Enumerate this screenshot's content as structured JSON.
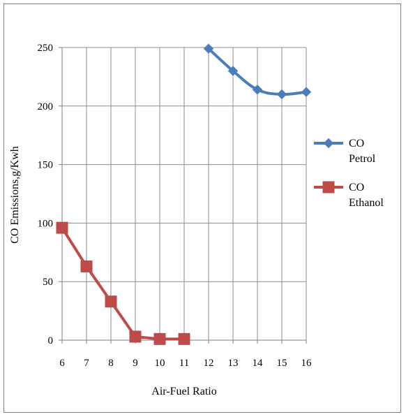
{
  "chart_data": {
    "type": "line",
    "xlabel": "Air-Fuel Ratio",
    "ylabel": "CO Emissions,g/Kwh",
    "categories": [
      "6",
      "7",
      "8",
      "9",
      "10",
      "11",
      "12",
      "13",
      "14",
      "15",
      "16"
    ],
    "ylim": [
      0,
      250
    ],
    "yticks": [
      0,
      50,
      100,
      150,
      200,
      250
    ],
    "grid": true,
    "legend_position": "right",
    "series": [
      {
        "name_lines": [
          "CO",
          "Petrol"
        ],
        "color": "#4a7ebb",
        "marker": "diamond",
        "smooth": true,
        "points": [
          [
            12,
            249
          ],
          [
            13,
            230
          ],
          [
            14,
            214
          ],
          [
            15,
            210
          ],
          [
            16,
            212
          ]
        ]
      },
      {
        "name_lines": [
          "CO",
          "Ethanol"
        ],
        "color": "#be4b48",
        "marker": "square",
        "smooth": false,
        "points": [
          [
            6,
            96
          ],
          [
            7,
            63
          ],
          [
            8,
            33
          ],
          [
            9,
            3
          ],
          [
            10,
            1
          ],
          [
            11,
            1
          ]
        ]
      }
    ]
  }
}
